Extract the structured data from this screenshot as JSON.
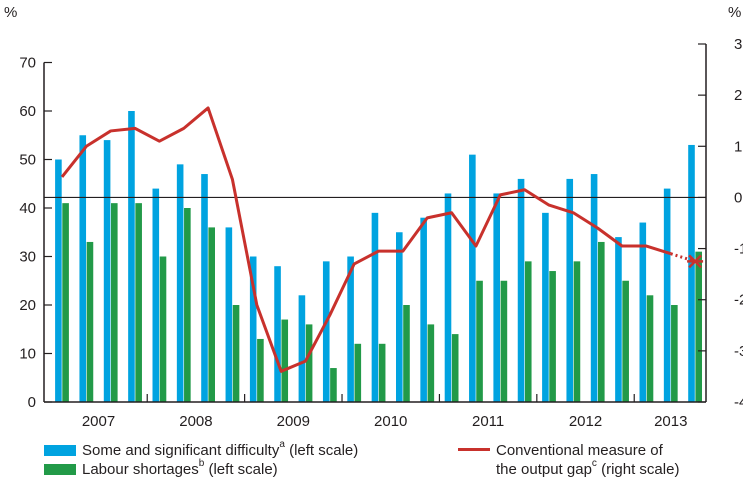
{
  "chart_data": {
    "type": "bar+line",
    "left_unit": "%",
    "right_unit": "%",
    "left_ylim": [
      0,
      70
    ],
    "right_ylim": [
      -4,
      3
    ],
    "left_ticks": [
      "0",
      "10",
      "20",
      "30",
      "40",
      "50",
      "60",
      "70"
    ],
    "right_ticks": [
      "-4",
      "-3",
      "-2",
      "-1",
      "0",
      "1",
      "2",
      "3"
    ],
    "year_labels": [
      "2007",
      "2008",
      "2009",
      "2010",
      "2011",
      "2012",
      "2013"
    ],
    "grid": false,
    "zero_line_right_axis": 0,
    "series": [
      {
        "name": "Some and significant difficulty",
        "marker": "a",
        "note": "(left scale)",
        "kind": "bar",
        "color": "#00a3e0",
        "values": [
          50,
          55,
          54,
          60,
          44,
          49,
          47,
          36,
          30,
          28,
          22,
          29,
          30,
          39,
          35,
          38,
          43,
          51,
          43,
          46,
          39,
          46,
          47,
          34,
          37,
          44,
          53
        ]
      },
      {
        "name": "Labour shortages",
        "marker": "b",
        "note": "(left scale)",
        "kind": "bar",
        "color": "#229a48",
        "values": [
          41,
          33,
          41,
          41,
          30,
          40,
          36,
          20,
          13,
          17,
          16,
          7,
          12,
          12,
          20,
          16,
          14,
          25,
          25,
          29,
          27,
          29,
          33,
          25,
          22,
          20,
          31
        ]
      },
      {
        "name_line1": "Conventional measure of",
        "name_line2": "the output gap",
        "marker": "c",
        "note": "(right scale)",
        "kind": "line",
        "axis": "right",
        "color": "#c8312c",
        "values": [
          0.4,
          1.0,
          1.3,
          1.35,
          1.1,
          1.35,
          1.75,
          0.35,
          -2.1,
          -3.4,
          -3.2,
          -2.3,
          -1.3,
          -1.05,
          -1.05,
          -0.4,
          -0.3,
          -0.95,
          0.05,
          0.15,
          -0.15,
          -0.3,
          -0.6,
          -0.95,
          -0.95,
          -1.1,
          -1.25
        ],
        "dotted_last_segment": true,
        "end_marker": "star"
      }
    ]
  }
}
